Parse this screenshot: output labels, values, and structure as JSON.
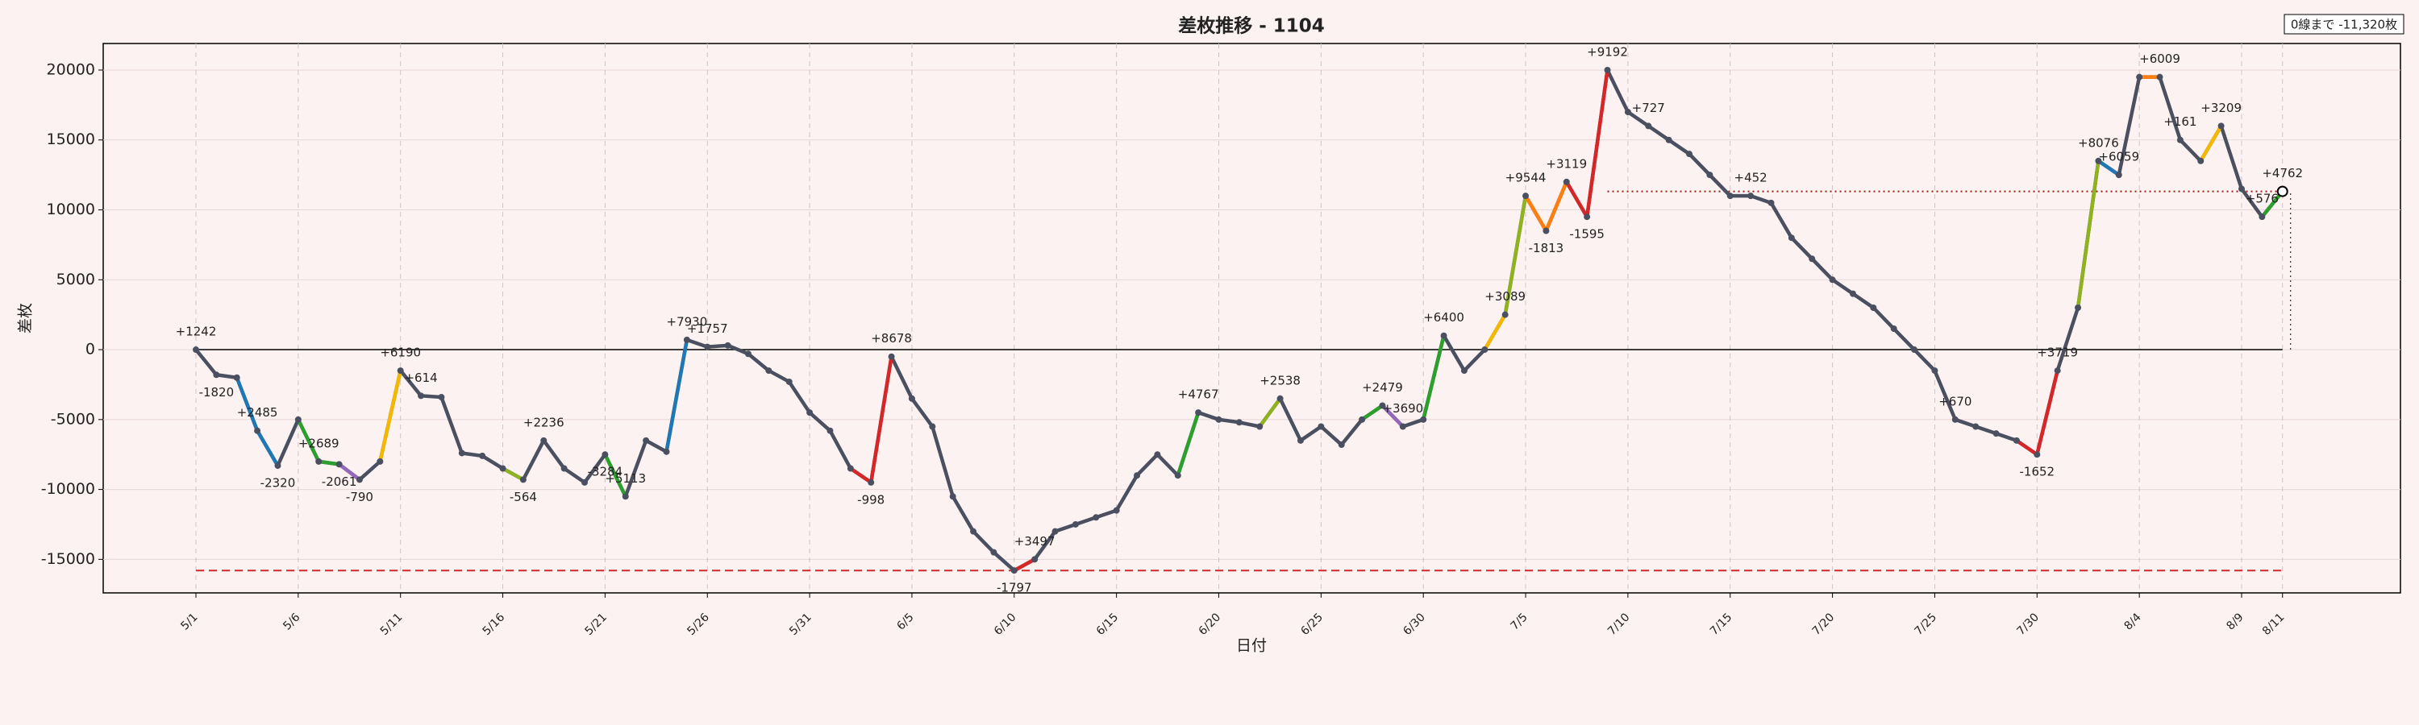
{
  "chart_data": {
    "type": "line",
    "title": "差枚推移 - 1104",
    "xlabel": "日付",
    "ylabel": "差枚",
    "note": "0線まで -11,320枚",
    "ylim": [
      -17400,
      21900
    ],
    "yticks": [
      -15000,
      -10000,
      -5000,
      0,
      5000,
      10000,
      15000,
      20000
    ],
    "xticks": [
      "5/1",
      "5/6",
      "5/11",
      "5/16",
      "5/21",
      "5/26",
      "5/31",
      "6/5",
      "6/10",
      "6/15",
      "6/20",
      "6/25",
      "6/30",
      "7/5",
      "7/10",
      "7/15",
      "7/20",
      "7/25",
      "7/30",
      "8/4",
      "8/9",
      "8/11"
    ],
    "xtick_colors": [
      "#000",
      "#000",
      "#000",
      "#000",
      "#000",
      "#000",
      "#000",
      "#d62728",
      "#000",
      "#d62728",
      "#000",
      "#d62728",
      "#000",
      "#d62728",
      "#000",
      "#d62728",
      "#000",
      "#d62728",
      "#000",
      "#000",
      "#000",
      "#000"
    ],
    "grid": true,
    "x": [
      "5/1",
      "5/2",
      "5/3",
      "5/4",
      "5/5",
      "5/6",
      "5/7",
      "5/8",
      "5/9",
      "5/10",
      "5/11",
      "5/12",
      "5/13",
      "5/14",
      "5/15",
      "5/16",
      "5/17",
      "5/18",
      "5/19",
      "5/20",
      "5/21",
      "5/22",
      "5/23",
      "5/24",
      "5/25",
      "5/26",
      "5/27",
      "5/28",
      "5/29",
      "5/30",
      "5/31",
      "6/1",
      "6/2",
      "6/3",
      "6/4",
      "6/5",
      "6/6",
      "6/7",
      "6/8",
      "6/9",
      "6/10",
      "6/11",
      "6/12",
      "6/13",
      "6/14",
      "6/15",
      "6/16",
      "6/17",
      "6/18",
      "6/19",
      "6/20",
      "6/21",
      "6/22",
      "6/23",
      "6/24",
      "6/25",
      "6/26",
      "6/27",
      "6/28",
      "6/29",
      "6/30",
      "7/1",
      "7/2",
      "7/3",
      "7/4",
      "7/5",
      "7/6",
      "7/7",
      "7/8",
      "7/9",
      "7/10",
      "7/11",
      "7/12",
      "7/13",
      "7/14",
      "7/15",
      "7/16",
      "7/17",
      "7/18",
      "7/19",
      "7/20",
      "7/21",
      "7/22",
      "7/23",
      "7/24",
      "7/25",
      "7/26",
      "7/27",
      "7/28",
      "7/29",
      "7/30",
      "7/31",
      "8/1",
      "8/2",
      "8/3",
      "8/4",
      "8/5",
      "8/6",
      "8/7",
      "8/8",
      "8/9",
      "8/10",
      "8/11"
    ],
    "series": [
      {
        "name": "差枚",
        "color": "#4a5060",
        "values": [
          0,
          -1800,
          -2000,
          -5800,
          -8300,
          -5000,
          -8000,
          -8200,
          -9300,
          -8000,
          -1500,
          -3300,
          -3400,
          -7400,
          -7600,
          -8500,
          -9300,
          -6500,
          -8500,
          -9500,
          -7500,
          -10500,
          -6500,
          -7300,
          700,
          200,
          300,
          -300,
          -1500,
          -2300,
          -4500,
          -5800,
          -8500,
          -9500,
          -500,
          -3500,
          -5500,
          -10500,
          -13000,
          -14500,
          -15800,
          -15000,
          -13000,
          -12500,
          -12000,
          -11500,
          -9000,
          -7500,
          -9000,
          -4500,
          -5000,
          -5200,
          -5500,
          -3500,
          -6500,
          -5500,
          -6800,
          -5000,
          -4000,
          -5500,
          -5000,
          1000,
          -1500,
          0,
          2500,
          11000,
          8500,
          12000,
          9500,
          20000,
          17000,
          16000,
          15000,
          14000,
          12500,
          11000,
          11000,
          10500,
          8000,
          6500,
          5000,
          4000,
          3000,
          1500,
          0,
          -1500,
          -5000,
          -5500,
          -6000,
          -6500,
          -7500,
          -1500,
          3000,
          13500,
          12500,
          19500,
          19500,
          15000,
          13500,
          16000,
          11500,
          9500,
          11320
        ]
      }
    ],
    "reference_lines": [
      {
        "value": 0,
        "color": "#000000",
        "style": "solid"
      },
      {
        "value": -15800,
        "color": "#d62728",
        "style": "dashed"
      },
      {
        "value": 11320,
        "color": "#a01818",
        "style": "dotted",
        "from": "7/9"
      }
    ],
    "annotations": [
      {
        "x": "5/1",
        "text": "+1242",
        "color": "#4a5060"
      },
      {
        "x": "5/2",
        "text": "-1820",
        "color": "#4a5060"
      },
      {
        "x": "5/4",
        "text": "+2485",
        "color": "#1f77b4"
      },
      {
        "x": "5/5",
        "text": "-2320",
        "color": "#1f77b4"
      },
      {
        "x": "5/7",
        "text": "+2689",
        "color": "#2ca02c"
      },
      {
        "x": "5/8",
        "text": "-2061",
        "color": "#2ca02c"
      },
      {
        "x": "5/9",
        "text": "-790",
        "color": "#9467bd"
      },
      {
        "x": "5/11",
        "text": "+6190",
        "color": "#f5b800"
      },
      {
        "x": "5/12",
        "text": "+614",
        "color": "#4a5060"
      },
      {
        "x": "5/18",
        "text": "+2236",
        "color": "#4a5060"
      },
      {
        "x": "5/17",
        "text": "-564",
        "color": "#8fb31e"
      },
      {
        "x": "5/22",
        "text": "+5113",
        "color": "#2ca02c"
      },
      {
        "x": "5/21",
        "text": "-3284",
        "color": "#4a5060"
      },
      {
        "x": "5/25",
        "text": "+7930",
        "color": "#1f77b4"
      },
      {
        "x": "5/26",
        "text": "+1757",
        "color": "#4a5060"
      },
      {
        "x": "6/4",
        "text": "+8678",
        "color": "#d62728"
      },
      {
        "x": "6/3",
        "text": "-998",
        "color": "#d62728"
      },
      {
        "x": "6/10",
        "text": "-1797",
        "color": "#4a5060"
      },
      {
        "x": "6/11",
        "text": "+3497",
        "color": "#d62728"
      },
      {
        "x": "6/19",
        "text": "+4767",
        "color": "#2ca02c"
      },
      {
        "x": "6/23",
        "text": "+2538",
        "color": "#8fb31e"
      },
      {
        "x": "6/28",
        "text": "+2479",
        "color": "#2ca02c"
      },
      {
        "x": "6/29",
        "text": "+3690",
        "color": "#9467bd"
      },
      {
        "x": "7/1",
        "text": "+6400",
        "color": "#2ca02c"
      },
      {
        "x": "7/4",
        "text": "+3089",
        "color": "#f5b800"
      },
      {
        "x": "7/5",
        "text": "+9544",
        "color": "#8fb31e"
      },
      {
        "x": "7/7",
        "text": "+3119",
        "color": "#ff7f0e"
      },
      {
        "x": "7/6",
        "text": "-1813",
        "color": "#ff7f0e"
      },
      {
        "x": "7/9",
        "text": "+9192",
        "color": "#d62728"
      },
      {
        "x": "7/8",
        "text": "-1595",
        "color": "#d62728"
      },
      {
        "x": "7/11",
        "text": "+727",
        "color": "#4a5060"
      },
      {
        "x": "7/16",
        "text": "+452",
        "color": "#4a5060"
      },
      {
        "x": "7/26",
        "text": "+670",
        "color": "#4a5060"
      },
      {
        "x": "7/31",
        "text": "+3719",
        "color": "#d62728"
      },
      {
        "x": "7/30",
        "text": "-1652",
        "color": "#d62728"
      },
      {
        "x": "8/2",
        "text": "+8076",
        "color": "#8fb31e"
      },
      {
        "x": "8/3",
        "text": "+6059",
        "color": "#1f77b4"
      },
      {
        "x": "8/5",
        "text": "+6009",
        "color": "#ff7f0e"
      },
      {
        "x": "8/6",
        "text": "+161",
        "color": "#4a5060"
      },
      {
        "x": "8/8",
        "text": "+3209",
        "color": "#f5b800"
      },
      {
        "x": "8/10",
        "text": "+576",
        "color": "#4a5060"
      },
      {
        "x": "8/11",
        "text": "+4762",
        "color": "#2ca02c"
      }
    ]
  }
}
